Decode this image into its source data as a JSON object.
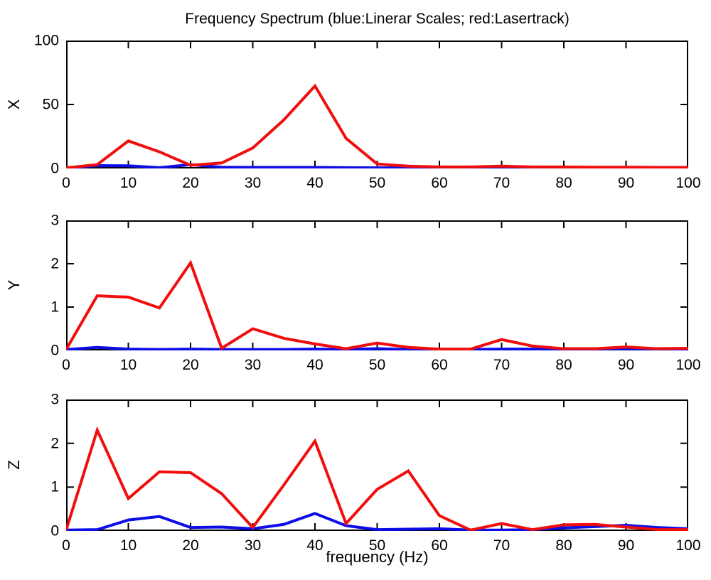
{
  "title": "Frequency Spectrum (blue:Linerar Scales; red:Lasertrack)",
  "xlabel": "frequency (Hz)",
  "colors": {
    "red": "#f20d0d",
    "blue": "#0d0de8",
    "axis": "#000000",
    "background": "#ffffff"
  },
  "chart_data": [
    {
      "type": "line",
      "title": "Frequency Spectrum (blue:Linerar Scales; red:Lasertrack)",
      "ylabel": "X",
      "xlim": [
        0,
        100
      ],
      "ylim": [
        0,
        100
      ],
      "xticks": [
        0,
        10,
        20,
        30,
        40,
        50,
        60,
        70,
        80,
        90,
        100
      ],
      "yticks": [
        0,
        50,
        100
      ],
      "grid": false,
      "x": [
        0,
        5,
        10,
        15,
        20,
        25,
        30,
        35,
        40,
        45,
        50,
        55,
        60,
        65,
        70,
        75,
        80,
        85,
        90,
        95,
        100
      ],
      "series": [
        {
          "name": "Linerar Scales",
          "color_key": "blue",
          "values": [
            0.3,
            2.2,
            2.1,
            0.6,
            3,
            1,
            0.8,
            0.8,
            0.8,
            0.6,
            0.5,
            0.5,
            0.5,
            0.5,
            0.5,
            0.5,
            0.5,
            0.5,
            0.5,
            0.5,
            0.5
          ]
        },
        {
          "name": "Lasertrack",
          "color_key": "red",
          "values": [
            0.5,
            3,
            21.5,
            13,
            2.5,
            4.3,
            16,
            38,
            64.5,
            23.5,
            3.5,
            1.8,
            1.2,
            1.2,
            1.8,
            1.2,
            1.2,
            1,
            1,
            0.8,
            0.8
          ]
        }
      ]
    },
    {
      "type": "line",
      "ylabel": "Y",
      "xlim": [
        0,
        100
      ],
      "ylim": [
        0,
        3
      ],
      "xticks": [
        0,
        10,
        20,
        30,
        40,
        50,
        60,
        70,
        80,
        90,
        100
      ],
      "yticks": [
        0,
        1,
        2,
        3
      ],
      "grid": false,
      "x": [
        0,
        5,
        10,
        15,
        20,
        25,
        30,
        35,
        40,
        45,
        50,
        55,
        60,
        65,
        70,
        75,
        80,
        85,
        90,
        95,
        100
      ],
      "series": [
        {
          "name": "Linerar Scales",
          "color_key": "blue",
          "values": [
            0.02,
            0.07,
            0.03,
            0.02,
            0.03,
            0.02,
            0.02,
            0.02,
            0.03,
            0.02,
            0.04,
            0.02,
            0.02,
            0.02,
            0.03,
            0.03,
            0.02,
            0.03,
            0.04,
            0.03,
            0.03
          ]
        },
        {
          "name": "Lasertrack",
          "color_key": "red",
          "values": [
            0.02,
            1.26,
            1.23,
            0.98,
            2.02,
            0.05,
            0.5,
            0.28,
            0.15,
            0.04,
            0.17,
            0.07,
            0.03,
            0.03,
            0.25,
            0.1,
            0.04,
            0.04,
            0.08,
            0.04,
            0.05
          ]
        }
      ]
    },
    {
      "type": "line",
      "ylabel": "Z",
      "xlim": [
        0,
        100
      ],
      "ylim": [
        0,
        3
      ],
      "xticks": [
        0,
        10,
        20,
        30,
        40,
        50,
        60,
        70,
        80,
        90,
        100
      ],
      "yticks": [
        0,
        1,
        2,
        3
      ],
      "grid": false,
      "x": [
        0,
        5,
        10,
        15,
        20,
        25,
        30,
        35,
        40,
        45,
        50,
        55,
        60,
        65,
        70,
        75,
        80,
        85,
        90,
        95,
        100
      ],
      "series": [
        {
          "name": "Linerar Scales",
          "color_key": "blue",
          "values": [
            0.02,
            0.03,
            0.25,
            0.33,
            0.08,
            0.09,
            0.05,
            0.15,
            0.4,
            0.12,
            0.03,
            0.04,
            0.05,
            0.02,
            0.02,
            0.03,
            0.07,
            0.1,
            0.13,
            0.08,
            0.05
          ]
        },
        {
          "name": "Lasertrack",
          "color_key": "red",
          "values": [
            0.02,
            2.3,
            0.74,
            1.35,
            1.33,
            0.85,
            0.08,
            1.05,
            2.05,
            0.17,
            0.95,
            1.37,
            0.35,
            0.02,
            0.17,
            0.03,
            0.14,
            0.15,
            0.09,
            0.03,
            0.03
          ]
        }
      ]
    }
  ]
}
